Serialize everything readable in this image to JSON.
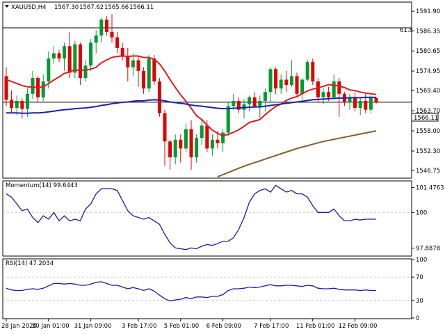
{
  "header": {
    "symbol": "XAUUSD,H4",
    "open": "1567.30",
    "high": "1567.62",
    "low": "1565.66",
    "close": "1566.11"
  },
  "price_label": "1566.11",
  "fib_label": "61.8",
  "colors": {
    "bull": "#009933",
    "bear": "#e00000",
    "sma_short": "#e11b1b",
    "sma_mid": "#1a22b0",
    "sma_long": "#8b5a2b",
    "indicator": "#1a1aa6",
    "grid": "#c8c8c8",
    "frame": "#000000"
  },
  "chart_data": [
    {
      "type": "candlestick",
      "title": "XAUUSD,H4",
      "ylim": [
        1545.0,
        1593.5
      ],
      "yticks": [
        "1591.90",
        "1586.35",
        "1580.65",
        "1574.95",
        "1569.40",
        "1563.70",
        "1558.00",
        "1552.30",
        "1546.75"
      ],
      "xticks": [
        "28 Jan 2020",
        "30 Jan 01:00",
        "31 Jan 09:00",
        "3 Feb 17:00",
        "5 Feb 01:00",
        "6 Feb 09:00",
        "7 Feb 17:00",
        "11 Feb 01:00",
        "12 Feb 09:00"
      ],
      "current_price": 1566.11,
      "horizontal_levels": [
        {
          "label": "61.8",
          "value": 1587.2
        },
        {
          "label": "",
          "value": 1566.11
        }
      ],
      "ohlc": [
        [
          1573.5,
          1576.0,
          1565.0,
          1566.8
        ],
        [
          1566.8,
          1569.5,
          1563.0,
          1564.5
        ],
        [
          1564.5,
          1568.0,
          1562.5,
          1566.5
        ],
        [
          1566.5,
          1567.2,
          1561.5,
          1564.2
        ],
        [
          1564.2,
          1570.0,
          1562.0,
          1568.5
        ],
        [
          1568.5,
          1575.0,
          1567.0,
          1573.0
        ],
        [
          1573.0,
          1573.5,
          1566.0,
          1567.5
        ],
        [
          1567.5,
          1574.0,
          1566.5,
          1572.0
        ],
        [
          1572.0,
          1580.5,
          1570.0,
          1578.5
        ],
        [
          1578.5,
          1582.0,
          1577.0,
          1580.0
        ],
        [
          1580.0,
          1581.0,
          1577.5,
          1578.5
        ],
        [
          1578.5,
          1583.0,
          1575.0,
          1582.0
        ],
        [
          1582.0,
          1586.0,
          1573.0,
          1574.5
        ],
        [
          1574.5,
          1583.5,
          1573.0,
          1582.5
        ],
        [
          1582.5,
          1583.0,
          1571.0,
          1573.0
        ],
        [
          1573.0,
          1578.0,
          1572.0,
          1576.5
        ],
        [
          1576.5,
          1584.0,
          1575.0,
          1583.0
        ],
        [
          1583.0,
          1586.5,
          1580.0,
          1585.0
        ],
        [
          1585.0,
          1590.0,
          1583.0,
          1589.5
        ],
        [
          1589.5,
          1590.5,
          1585.0,
          1586.0
        ],
        [
          1586.0,
          1591.0,
          1583.0,
          1584.5
        ],
        [
          1584.5,
          1586.0,
          1580.0,
          1581.5
        ],
        [
          1581.5,
          1583.0,
          1578.0,
          1579.0
        ],
        [
          1579.0,
          1581.5,
          1572.0,
          1576.0
        ],
        [
          1576.0,
          1580.0,
          1573.5,
          1578.0
        ],
        [
          1578.0,
          1579.0,
          1570.5,
          1575.0
        ],
        [
          1575.0,
          1576.0,
          1568.5,
          1570.0
        ],
        [
          1570.0,
          1579.5,
          1569.0,
          1578.5
        ],
        [
          1578.5,
          1579.5,
          1571.0,
          1572.0
        ],
        [
          1572.0,
          1573.0,
          1562.0,
          1563.0
        ],
        [
          1563.0,
          1564.0,
          1548.0,
          1555.0
        ],
        [
          1555.0,
          1555.5,
          1547.0,
          1550.5
        ],
        [
          1550.5,
          1557.0,
          1548.5,
          1555.5
        ],
        [
          1555.5,
          1557.0,
          1549.0,
          1553.0
        ],
        [
          1553.0,
          1560.0,
          1552.0,
          1558.5
        ],
        [
          1558.5,
          1561.0,
          1547.0,
          1550.5
        ],
        [
          1550.5,
          1557.0,
          1549.0,
          1556.0
        ],
        [
          1556.0,
          1561.0,
          1554.0,
          1559.5
        ],
        [
          1559.5,
          1561.0,
          1552.0,
          1553.0
        ],
        [
          1553.0,
          1557.0,
          1551.0,
          1555.5
        ],
        [
          1555.5,
          1558.0,
          1553.0,
          1554.5
        ],
        [
          1554.5,
          1558.5,
          1552.0,
          1557.5
        ],
        [
          1557.5,
          1566.0,
          1556.5,
          1565.0
        ],
        [
          1565.0,
          1568.5,
          1564.0,
          1566.5
        ],
        [
          1566.5,
          1567.5,
          1563.0,
          1564.0
        ],
        [
          1564.0,
          1567.0,
          1561.5,
          1565.5
        ],
        [
          1565.5,
          1568.0,
          1563.5,
          1567.5
        ],
        [
          1567.5,
          1569.0,
          1564.5,
          1565.0
        ],
        [
          1565.0,
          1568.0,
          1561.5,
          1566.5
        ],
        [
          1566.5,
          1570.0,
          1563.5,
          1569.0
        ],
        [
          1569.0,
          1576.0,
          1566.0,
          1575.5
        ],
        [
          1575.5,
          1576.0,
          1568.5,
          1570.0
        ],
        [
          1570.0,
          1574.0,
          1568.5,
          1572.5
        ],
        [
          1572.5,
          1575.0,
          1569.0,
          1571.0
        ],
        [
          1571.0,
          1578.0,
          1570.5,
          1573.5
        ],
        [
          1573.5,
          1574.5,
          1567.5,
          1568.5
        ],
        [
          1568.5,
          1573.0,
          1567.0,
          1572.5
        ],
        [
          1572.5,
          1578.0,
          1572.0,
          1577.5
        ],
        [
          1577.5,
          1578.5,
          1571.0,
          1572.0
        ],
        [
          1572.0,
          1573.0,
          1566.0,
          1567.5
        ],
        [
          1567.5,
          1570.0,
          1565.5,
          1569.0
        ],
        [
          1569.0,
          1570.5,
          1566.5,
          1567.5
        ],
        [
          1567.5,
          1574.0,
          1567.0,
          1572.0
        ],
        [
          1572.0,
          1573.0,
          1562.0,
          1568.5
        ],
        [
          1568.5,
          1569.0,
          1565.0,
          1566.0
        ],
        [
          1566.0,
          1568.5,
          1564.0,
          1567.5
        ],
        [
          1567.5,
          1569.0,
          1563.5,
          1564.5
        ],
        [
          1564.5,
          1567.5,
          1562.5,
          1566.5
        ],
        [
          1566.5,
          1568.5,
          1563.0,
          1564.0
        ],
        [
          1564.0,
          1568.0,
          1563.0,
          1567.3
        ],
        [
          1567.3,
          1567.62,
          1565.66,
          1566.11
        ]
      ],
      "series": [
        {
          "values": [
            1572.5,
            1572.0,
            1571.4,
            1570.8,
            1570.5,
            1570.4,
            1570.3,
            1570.5,
            1571.4,
            1572.4,
            1573.3,
            1574.3,
            1574.7,
            1575.3,
            1575.1,
            1575.2,
            1575.5,
            1576.0,
            1577.3,
            1578.1,
            1578.8,
            1579.1,
            1579.2,
            1579.1,
            1579.2,
            1579.2,
            1578.8,
            1578.8,
            1578.3,
            1577.0,
            1574.9,
            1572.5,
            1570.3,
            1568.2,
            1566.4,
            1564.4,
            1562.3,
            1561.2,
            1559.6,
            1558.2,
            1557.3,
            1556.6,
            1557.0,
            1557.6,
            1558.3,
            1559.3,
            1560.4,
            1560.8,
            1561.2,
            1562.6,
            1563.8,
            1564.9,
            1565.6,
            1566.6,
            1567.3,
            1567.7,
            1568.5,
            1569.3,
            1569.8,
            1570.2,
            1570.6,
            1571.1,
            1570.9,
            1570.7,
            1570.3,
            1569.6,
            1569.4,
            1569.0,
            1568.7,
            1568.5,
            1568.3
          ]
        },
        {
          "values": [
            1563.1,
            1563.1,
            1563.1,
            1563.0,
            1563.0,
            1563.1,
            1563.1,
            1563.2,
            1563.4,
            1563.6,
            1563.8,
            1564.0,
            1564.1,
            1564.3,
            1564.4,
            1564.5,
            1564.7,
            1564.9,
            1565.2,
            1565.4,
            1565.7,
            1565.9,
            1566.1,
            1566.2,
            1566.4,
            1566.5,
            1566.5,
            1566.7,
            1566.8,
            1566.7,
            1566.5,
            1566.2,
            1566.0,
            1565.8,
            1565.6,
            1565.3,
            1565.1,
            1565.0,
            1564.8,
            1564.6,
            1564.4,
            1564.3,
            1564.3,
            1564.4,
            1564.5,
            1564.6,
            1564.7,
            1564.8,
            1564.8,
            1565.0,
            1565.2,
            1565.4,
            1565.6,
            1565.8,
            1566.0,
            1566.2,
            1566.4,
            1566.6,
            1566.8,
            1566.9,
            1567.0,
            1567.1,
            1567.2,
            1567.3,
            1567.3,
            1567.4,
            1567.4,
            1567.4,
            1567.5,
            1567.5,
            1567.5
          ]
        },
        {
          "values": [
            null,
            null,
            null,
            null,
            null,
            null,
            null,
            null,
            null,
            null,
            null,
            null,
            null,
            null,
            null,
            null,
            null,
            null,
            null,
            null,
            null,
            null,
            null,
            null,
            null,
            null,
            null,
            null,
            null,
            null,
            null,
            null,
            null,
            null,
            null,
            null,
            null,
            null,
            null,
            null,
            1545.0,
            1545.6,
            1546.2,
            1546.8,
            1547.4,
            1548.0,
            1548.5,
            1549.0,
            1549.5,
            1550.0,
            1550.5,
            1551.0,
            1551.5,
            1552.0,
            1552.5,
            1553.0,
            1553.4,
            1553.8,
            1554.2,
            1554.6,
            1555.0,
            1555.3,
            1555.6,
            1555.9,
            1556.2,
            1556.5,
            1556.8,
            1557.1,
            1557.4,
            1557.7,
            1558.0
          ]
        }
      ]
    },
    {
      "type": "line",
      "title": "Momentum(14) 99.6443",
      "ylim": [
        97.5,
        101.7
      ],
      "yticks": [
        "101.4763",
        "100",
        "97.8878"
      ],
      "reference_line": 100,
      "values": [
        101.1,
        100.9,
        100.5,
        100.1,
        100.2,
        99.7,
        99.4,
        99.8,
        99.6,
        100.0,
        99.5,
        99.8,
        99.5,
        99.6,
        99.5,
        100.2,
        100.5,
        101.1,
        101.4,
        101.4,
        101.4,
        101.3,
        100.7,
        100.1,
        99.8,
        99.7,
        99.6,
        99.7,
        99.5,
        99.3,
        98.7,
        98.2,
        97.9,
        97.85,
        97.8,
        97.9,
        97.85,
        98.0,
        98.1,
        98.05,
        98.15,
        98.3,
        98.3,
        98.5,
        99.0,
        99.7,
        100.6,
        101.1,
        101.3,
        101.4,
        101.2,
        101.6,
        101.4,
        101.2,
        101.3,
        101.1,
        101.1,
        100.9,
        100.4,
        100.0,
        100.0,
        100.0,
        100.2,
        99.8,
        99.5,
        99.5,
        99.6,
        99.55,
        99.6,
        99.6,
        99.6
      ]
    },
    {
      "type": "line",
      "title": "RSI(14) 47.2034",
      "ylim": [
        0,
        100
      ],
      "yticks": [
        "100",
        "70",
        "30",
        "0"
      ],
      "reference_lines": [
        70,
        30
      ],
      "values": [
        51,
        48,
        47,
        47,
        49,
        50,
        49,
        51,
        55,
        59,
        59,
        58,
        59,
        58,
        56,
        56,
        58,
        61,
        62,
        59,
        56,
        56,
        53,
        50,
        52,
        50,
        47,
        50,
        46,
        39,
        33,
        29,
        31,
        32,
        35,
        33,
        36,
        36,
        35,
        37,
        37,
        40,
        47,
        50,
        50,
        51,
        53,
        52,
        53,
        55,
        57,
        55,
        55,
        56,
        56,
        55,
        54,
        56,
        55,
        51,
        50,
        50,
        51,
        49,
        48,
        48,
        48,
        47,
        48,
        47,
        47
      ]
    }
  ]
}
